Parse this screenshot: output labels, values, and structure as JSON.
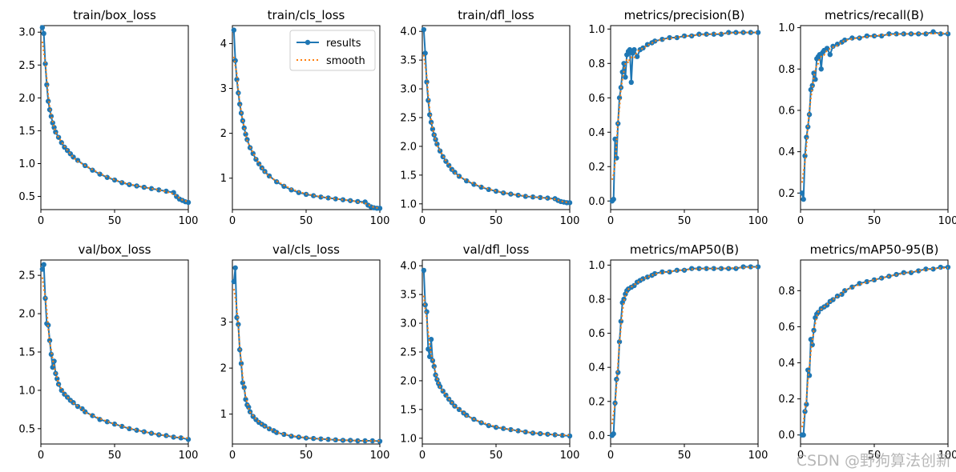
{
  "figure": {
    "watermark": "CSDN @野狗算法创新",
    "colors": {
      "results": "#1f77b4",
      "smooth": "#ff7f0e"
    },
    "legend": {
      "location": "upper-right",
      "panel": 1,
      "entries": [
        "results",
        "smooth"
      ]
    }
  },
  "chart_data": [
    {
      "type": "line",
      "title": "train/box_loss",
      "xlim": [
        0,
        100
      ],
      "ylim": [
        0.3,
        3.1
      ],
      "xticks": [
        0,
        50,
        100
      ],
      "yticks": [
        0.5,
        1.0,
        1.5,
        2.0,
        2.5,
        3.0
      ],
      "yfmt": 1,
      "series": [
        {
          "name": "results",
          "x": [
            1,
            2,
            3,
            4,
            5,
            6,
            7,
            8,
            9,
            10,
            12,
            14,
            16,
            18,
            20,
            22,
            25,
            30,
            35,
            40,
            45,
            50,
            55,
            60,
            65,
            70,
            75,
            80,
            85,
            90,
            92,
            94,
            96,
            98,
            100
          ],
          "values": [
            3.07,
            2.98,
            2.52,
            2.2,
            1.95,
            1.82,
            1.72,
            1.62,
            1.55,
            1.48,
            1.4,
            1.32,
            1.25,
            1.2,
            1.15,
            1.1,
            1.05,
            0.97,
            0.9,
            0.84,
            0.79,
            0.75,
            0.71,
            0.68,
            0.66,
            0.64,
            0.62,
            0.6,
            0.58,
            0.56,
            0.5,
            0.46,
            0.44,
            0.42,
            0.41
          ]
        },
        {
          "name": "smooth",
          "from": "results"
        }
      ]
    },
    {
      "type": "line",
      "title": "train/cls_loss",
      "xlim": [
        0,
        100
      ],
      "ylim": [
        0.3,
        4.4
      ],
      "xticks": [
        0,
        50,
        100
      ],
      "yticks": [
        1,
        2,
        3,
        4
      ],
      "yfmt": 0,
      "series": [
        {
          "name": "results",
          "x": [
            1,
            2,
            3,
            4,
            5,
            6,
            7,
            8,
            9,
            10,
            12,
            14,
            16,
            18,
            20,
            22,
            25,
            30,
            35,
            40,
            45,
            50,
            55,
            60,
            65,
            70,
            75,
            80,
            85,
            90,
            92,
            94,
            96,
            98,
            100
          ],
          "values": [
            4.3,
            3.62,
            3.2,
            2.9,
            2.65,
            2.45,
            2.28,
            2.12,
            1.98,
            1.86,
            1.68,
            1.55,
            1.42,
            1.32,
            1.23,
            1.15,
            1.05,
            0.92,
            0.82,
            0.74,
            0.68,
            0.64,
            0.61,
            0.58,
            0.56,
            0.54,
            0.52,
            0.5,
            0.48,
            0.47,
            0.4,
            0.36,
            0.34,
            0.33,
            0.33
          ]
        },
        {
          "name": "smooth",
          "from": "results"
        }
      ]
    },
    {
      "type": "line",
      "title": "train/dfl_loss",
      "xlim": [
        0,
        100
      ],
      "ylim": [
        0.9,
        4.1
      ],
      "xticks": [
        0,
        50,
        100
      ],
      "yticks": [
        1.0,
        1.5,
        2.0,
        2.5,
        3.0,
        3.5,
        4.0
      ],
      "yfmt": 1,
      "series": [
        {
          "name": "results",
          "x": [
            1,
            2,
            3,
            4,
            5,
            6,
            7,
            8,
            9,
            10,
            12,
            14,
            16,
            18,
            20,
            22,
            25,
            30,
            35,
            40,
            45,
            50,
            55,
            60,
            65,
            70,
            75,
            80,
            85,
            90,
            92,
            94,
            96,
            98,
            100
          ],
          "values": [
            4.03,
            3.62,
            3.12,
            2.8,
            2.55,
            2.42,
            2.3,
            2.2,
            2.12,
            2.04,
            1.92,
            1.82,
            1.74,
            1.67,
            1.6,
            1.55,
            1.48,
            1.4,
            1.34,
            1.29,
            1.25,
            1.22,
            1.19,
            1.17,
            1.15,
            1.13,
            1.12,
            1.11,
            1.1,
            1.09,
            1.06,
            1.04,
            1.03,
            1.02,
            1.02
          ]
        },
        {
          "name": "smooth",
          "from": "results"
        }
      ]
    },
    {
      "type": "line",
      "title": "metrics/precision(B)",
      "xlim": [
        0,
        100
      ],
      "ylim": [
        -0.05,
        1.02
      ],
      "xticks": [
        0,
        50,
        100
      ],
      "yticks": [
        0.0,
        0.2,
        0.4,
        0.6,
        0.8,
        1.0
      ],
      "yfmt": 1,
      "series": [
        {
          "name": "results",
          "x": [
            1,
            2,
            3,
            4,
            5,
            6,
            7,
            8,
            9,
            10,
            11,
            12,
            13,
            14,
            15,
            16,
            18,
            20,
            22,
            25,
            28,
            30,
            35,
            40,
            45,
            50,
            55,
            60,
            65,
            70,
            75,
            80,
            85,
            90,
            95,
            100
          ],
          "values": [
            0.0,
            0.01,
            0.36,
            0.25,
            0.45,
            0.6,
            0.66,
            0.75,
            0.8,
            0.72,
            0.85,
            0.87,
            0.88,
            0.69,
            0.86,
            0.88,
            0.84,
            0.88,
            0.89,
            0.91,
            0.92,
            0.93,
            0.94,
            0.95,
            0.95,
            0.96,
            0.96,
            0.97,
            0.97,
            0.97,
            0.97,
            0.98,
            0.98,
            0.98,
            0.98,
            0.98
          ]
        },
        {
          "name": "smooth",
          "from": "results"
        }
      ]
    },
    {
      "type": "line",
      "title": "metrics/recall(B)",
      "xlim": [
        0,
        100
      ],
      "ylim": [
        0.12,
        1.01
      ],
      "xticks": [
        0,
        50,
        100
      ],
      "yticks": [
        0.2,
        0.4,
        0.6,
        0.8,
        1.0
      ],
      "yfmt": 1,
      "series": [
        {
          "name": "results",
          "x": [
            1,
            2,
            3,
            4,
            5,
            6,
            7,
            8,
            9,
            10,
            11,
            12,
            13,
            14,
            15,
            16,
            18,
            20,
            22,
            25,
            28,
            30,
            35,
            40,
            45,
            50,
            55,
            60,
            65,
            70,
            75,
            80,
            85,
            90,
            95,
            100
          ],
          "values": [
            0.2,
            0.17,
            0.38,
            0.47,
            0.52,
            0.58,
            0.7,
            0.72,
            0.78,
            0.75,
            0.85,
            0.86,
            0.87,
            0.8,
            0.88,
            0.89,
            0.9,
            0.87,
            0.91,
            0.92,
            0.93,
            0.94,
            0.95,
            0.95,
            0.96,
            0.96,
            0.96,
            0.97,
            0.97,
            0.97,
            0.97,
            0.97,
            0.97,
            0.98,
            0.97,
            0.97
          ]
        },
        {
          "name": "smooth",
          "from": "results"
        }
      ]
    },
    {
      "type": "line",
      "title": "val/box_loss",
      "xlim": [
        0,
        100
      ],
      "ylim": [
        0.3,
        2.7
      ],
      "xticks": [
        0,
        50,
        100
      ],
      "yticks": [
        0.5,
        1.0,
        1.5,
        2.0,
        2.5
      ],
      "yfmt": 1,
      "series": [
        {
          "name": "results",
          "x": [
            1,
            2,
            3,
            4,
            5,
            6,
            7,
            8,
            9,
            10,
            11,
            12,
            14,
            16,
            18,
            20,
            22,
            25,
            28,
            30,
            35,
            40,
            45,
            50,
            55,
            60,
            65,
            70,
            75,
            80,
            85,
            90,
            95,
            100
          ],
          "values": [
            2.58,
            2.64,
            2.2,
            1.87,
            1.85,
            1.65,
            1.47,
            1.3,
            1.38,
            1.22,
            1.15,
            1.08,
            1.0,
            0.95,
            0.91,
            0.87,
            0.84,
            0.79,
            0.76,
            0.72,
            0.67,
            0.62,
            0.59,
            0.56,
            0.53,
            0.5,
            0.48,
            0.46,
            0.44,
            0.42,
            0.41,
            0.39,
            0.38,
            0.36
          ]
        },
        {
          "name": "smooth",
          "from": "results"
        }
      ]
    },
    {
      "type": "line",
      "title": "val/cls_loss",
      "xlim": [
        0,
        100
      ],
      "ylim": [
        0.35,
        4.35
      ],
      "xticks": [
        0,
        50,
        100
      ],
      "yticks": [
        1,
        2,
        3
      ],
      "yfmt": 0,
      "series": [
        {
          "name": "results",
          "x": [
            1,
            2,
            3,
            4,
            5,
            6,
            7,
            8,
            9,
            10,
            11,
            12,
            14,
            16,
            18,
            20,
            22,
            25,
            28,
            30,
            35,
            40,
            45,
            50,
            55,
            60,
            65,
            70,
            75,
            80,
            85,
            90,
            95,
            100
          ],
          "values": [
            3.88,
            4.18,
            3.1,
            2.95,
            2.4,
            2.1,
            1.68,
            1.58,
            1.32,
            1.2,
            1.15,
            1.05,
            0.95,
            0.88,
            0.82,
            0.78,
            0.74,
            0.68,
            0.64,
            0.6,
            0.56,
            0.52,
            0.5,
            0.48,
            0.47,
            0.46,
            0.45,
            0.44,
            0.43,
            0.43,
            0.42,
            0.42,
            0.42,
            0.41
          ]
        },
        {
          "name": "smooth",
          "from": "results"
        }
      ]
    },
    {
      "type": "line",
      "title": "val/dfl_loss",
      "xlim": [
        0,
        100
      ],
      "ylim": [
        0.9,
        4.1
      ],
      "xticks": [
        0,
        50,
        100
      ],
      "yticks": [
        1.0,
        1.5,
        2.0,
        2.5,
        3.0,
        3.5,
        4.0
      ],
      "yfmt": 1,
      "series": [
        {
          "name": "results",
          "x": [
            1,
            2,
            3,
            4,
            5,
            6,
            7,
            8,
            9,
            10,
            11,
            12,
            14,
            16,
            18,
            20,
            22,
            25,
            28,
            30,
            35,
            40,
            45,
            50,
            55,
            60,
            65,
            70,
            75,
            80,
            85,
            90,
            95,
            100
          ],
          "values": [
            3.92,
            3.32,
            3.2,
            2.55,
            2.42,
            2.72,
            2.35,
            2.25,
            2.1,
            2.02,
            1.95,
            1.9,
            1.82,
            1.75,
            1.68,
            1.62,
            1.56,
            1.5,
            1.44,
            1.4,
            1.33,
            1.27,
            1.22,
            1.19,
            1.17,
            1.15,
            1.13,
            1.11,
            1.09,
            1.08,
            1.07,
            1.06,
            1.05,
            1.04
          ]
        },
        {
          "name": "smooth",
          "from": "results"
        }
      ]
    },
    {
      "type": "line",
      "title": "metrics/mAP50(B)",
      "xlim": [
        0,
        100
      ],
      "ylim": [
        -0.05,
        1.03
      ],
      "xticks": [
        0,
        50,
        100
      ],
      "yticks": [
        0.0,
        0.2,
        0.4,
        0.6,
        0.8,
        1.0
      ],
      "yfmt": 1,
      "series": [
        {
          "name": "results",
          "x": [
            1,
            2,
            3,
            4,
            5,
            6,
            7,
            8,
            9,
            10,
            11,
            12,
            14,
            16,
            18,
            20,
            22,
            25,
            28,
            30,
            35,
            40,
            45,
            50,
            55,
            60,
            65,
            70,
            75,
            80,
            85,
            90,
            95,
            100
          ],
          "values": [
            0.0,
            0.01,
            0.19,
            0.33,
            0.37,
            0.55,
            0.67,
            0.78,
            0.8,
            0.83,
            0.85,
            0.86,
            0.87,
            0.88,
            0.9,
            0.91,
            0.92,
            0.93,
            0.94,
            0.95,
            0.96,
            0.96,
            0.97,
            0.97,
            0.98,
            0.98,
            0.98,
            0.98,
            0.98,
            0.98,
            0.98,
            0.99,
            0.99,
            0.99
          ]
        },
        {
          "name": "smooth",
          "from": "results"
        }
      ]
    },
    {
      "type": "line",
      "title": "metrics/mAP50-95(B)",
      "xlim": [
        0,
        100
      ],
      "ylim": [
        -0.05,
        0.97
      ],
      "xticks": [
        0,
        50,
        100
      ],
      "yticks": [
        0.0,
        0.2,
        0.4,
        0.6,
        0.8
      ],
      "yfmt": 1,
      "series": [
        {
          "name": "results",
          "x": [
            1,
            2,
            3,
            4,
            5,
            6,
            7,
            8,
            9,
            10,
            11,
            12,
            14,
            16,
            18,
            20,
            22,
            25,
            28,
            30,
            35,
            40,
            45,
            50,
            55,
            60,
            65,
            70,
            75,
            80,
            85,
            90,
            95,
            100
          ],
          "values": [
            0.0,
            0.0,
            0.13,
            0.17,
            0.36,
            0.33,
            0.53,
            0.5,
            0.58,
            0.65,
            0.67,
            0.68,
            0.7,
            0.71,
            0.72,
            0.74,
            0.75,
            0.77,
            0.78,
            0.8,
            0.82,
            0.84,
            0.85,
            0.86,
            0.87,
            0.88,
            0.89,
            0.9,
            0.9,
            0.91,
            0.92,
            0.92,
            0.93,
            0.93
          ]
        },
        {
          "name": "smooth",
          "from": "results"
        }
      ]
    }
  ]
}
